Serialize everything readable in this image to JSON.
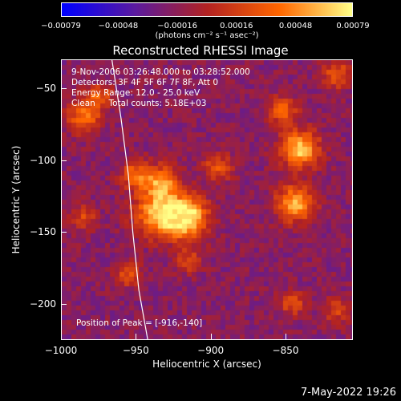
{
  "chart_data": {
    "type": "heatmap",
    "title": "Reconstructed RHESSI Image",
    "xlabel": "Heliocentric X (arcsec)",
    "ylabel": "Heliocentric Y (arcsec)",
    "xlim": [
      -1000,
      -805
    ],
    "ylim": [
      -225,
      -30
    ],
    "x_ticks": [
      -1000,
      -950,
      -900,
      -850
    ],
    "y_ticks": [
      -50,
      -100,
      -150,
      -200
    ],
    "x_tick_labels": [
      "−1000",
      "−950",
      "−900",
      "−850"
    ],
    "y_tick_labels": [
      "−50",
      "−100",
      "−150",
      "−200"
    ],
    "colorbar": {
      "min": -0.00079,
      "max": 0.00079,
      "tick_values": [
        -0.00079,
        -0.00048,
        -0.00016,
        0.00016,
        0.00048,
        0.00079
      ],
      "tick_labels": [
        "−0.00079",
        "−0.00048",
        "−0.00016",
        "0.00016",
        "0.00048",
        "0.00079"
      ],
      "unit_label": "(photons cm⁻² s⁻¹ asec⁻²)",
      "colormap": [
        "#0000ff",
        "#5a1aa0",
        "#b22222",
        "#ff6600",
        "#ffff88"
      ]
    },
    "sources": [
      {
        "x": -916,
        "y": -140,
        "amp": 1.0,
        "w": 10
      },
      {
        "x": -935,
        "y": -137,
        "amp": 0.85,
        "w": 11
      },
      {
        "x": -933,
        "y": -115,
        "amp": 0.65,
        "w": 8
      },
      {
        "x": -950,
        "y": -110,
        "amp": 0.55,
        "w": 7
      },
      {
        "x": -840,
        "y": -92,
        "amp": 0.9,
        "w": 9
      },
      {
        "x": -843,
        "y": -130,
        "amp": 0.8,
        "w": 9
      },
      {
        "x": -852,
        "y": -65,
        "amp": 0.55,
        "w": 7
      },
      {
        "x": -985,
        "y": -70,
        "amp": 0.6,
        "w": 8
      },
      {
        "x": -975,
        "y": -55,
        "amp": 0.5,
        "w": 6
      },
      {
        "x": -895,
        "y": -105,
        "amp": 0.45,
        "w": 7
      },
      {
        "x": -955,
        "y": -180,
        "amp": 0.45,
        "w": 6
      },
      {
        "x": -915,
        "y": -170,
        "amp": 0.4,
        "w": 6
      },
      {
        "x": -815,
        "y": -40,
        "amp": 0.5,
        "w": 7
      },
      {
        "x": -845,
        "y": -200,
        "amp": 0.45,
        "w": 6
      },
      {
        "x": -815,
        "y": -205,
        "amp": 0.4,
        "w": 6
      },
      {
        "x": -985,
        "y": -140,
        "amp": 0.4,
        "w": 6
      }
    ],
    "limb": {
      "points": [
        [
          -966,
          -30
        ],
        [
          -960,
          -70
        ],
        [
          -955,
          -110
        ],
        [
          -952,
          -150
        ],
        [
          -948,
          -190
        ],
        [
          -942,
          -225
        ]
      ]
    },
    "peak_position": [
      -916,
      -140
    ]
  },
  "info": {
    "time_range": "9-Nov-2006 03:26:48.000 to 03:28:52.000",
    "detectors": "Detectors: 3F 4F 5F 6F 7F 8F, Att 0",
    "energy": "Energy Range: 12.0 - 25.0 keV",
    "method_counts": "Clean     Total counts: 5.18E+03",
    "peak": "Position of Peak = [-916,-140]"
  },
  "footer": {
    "timestamp": "7-May-2022 19:26"
  }
}
